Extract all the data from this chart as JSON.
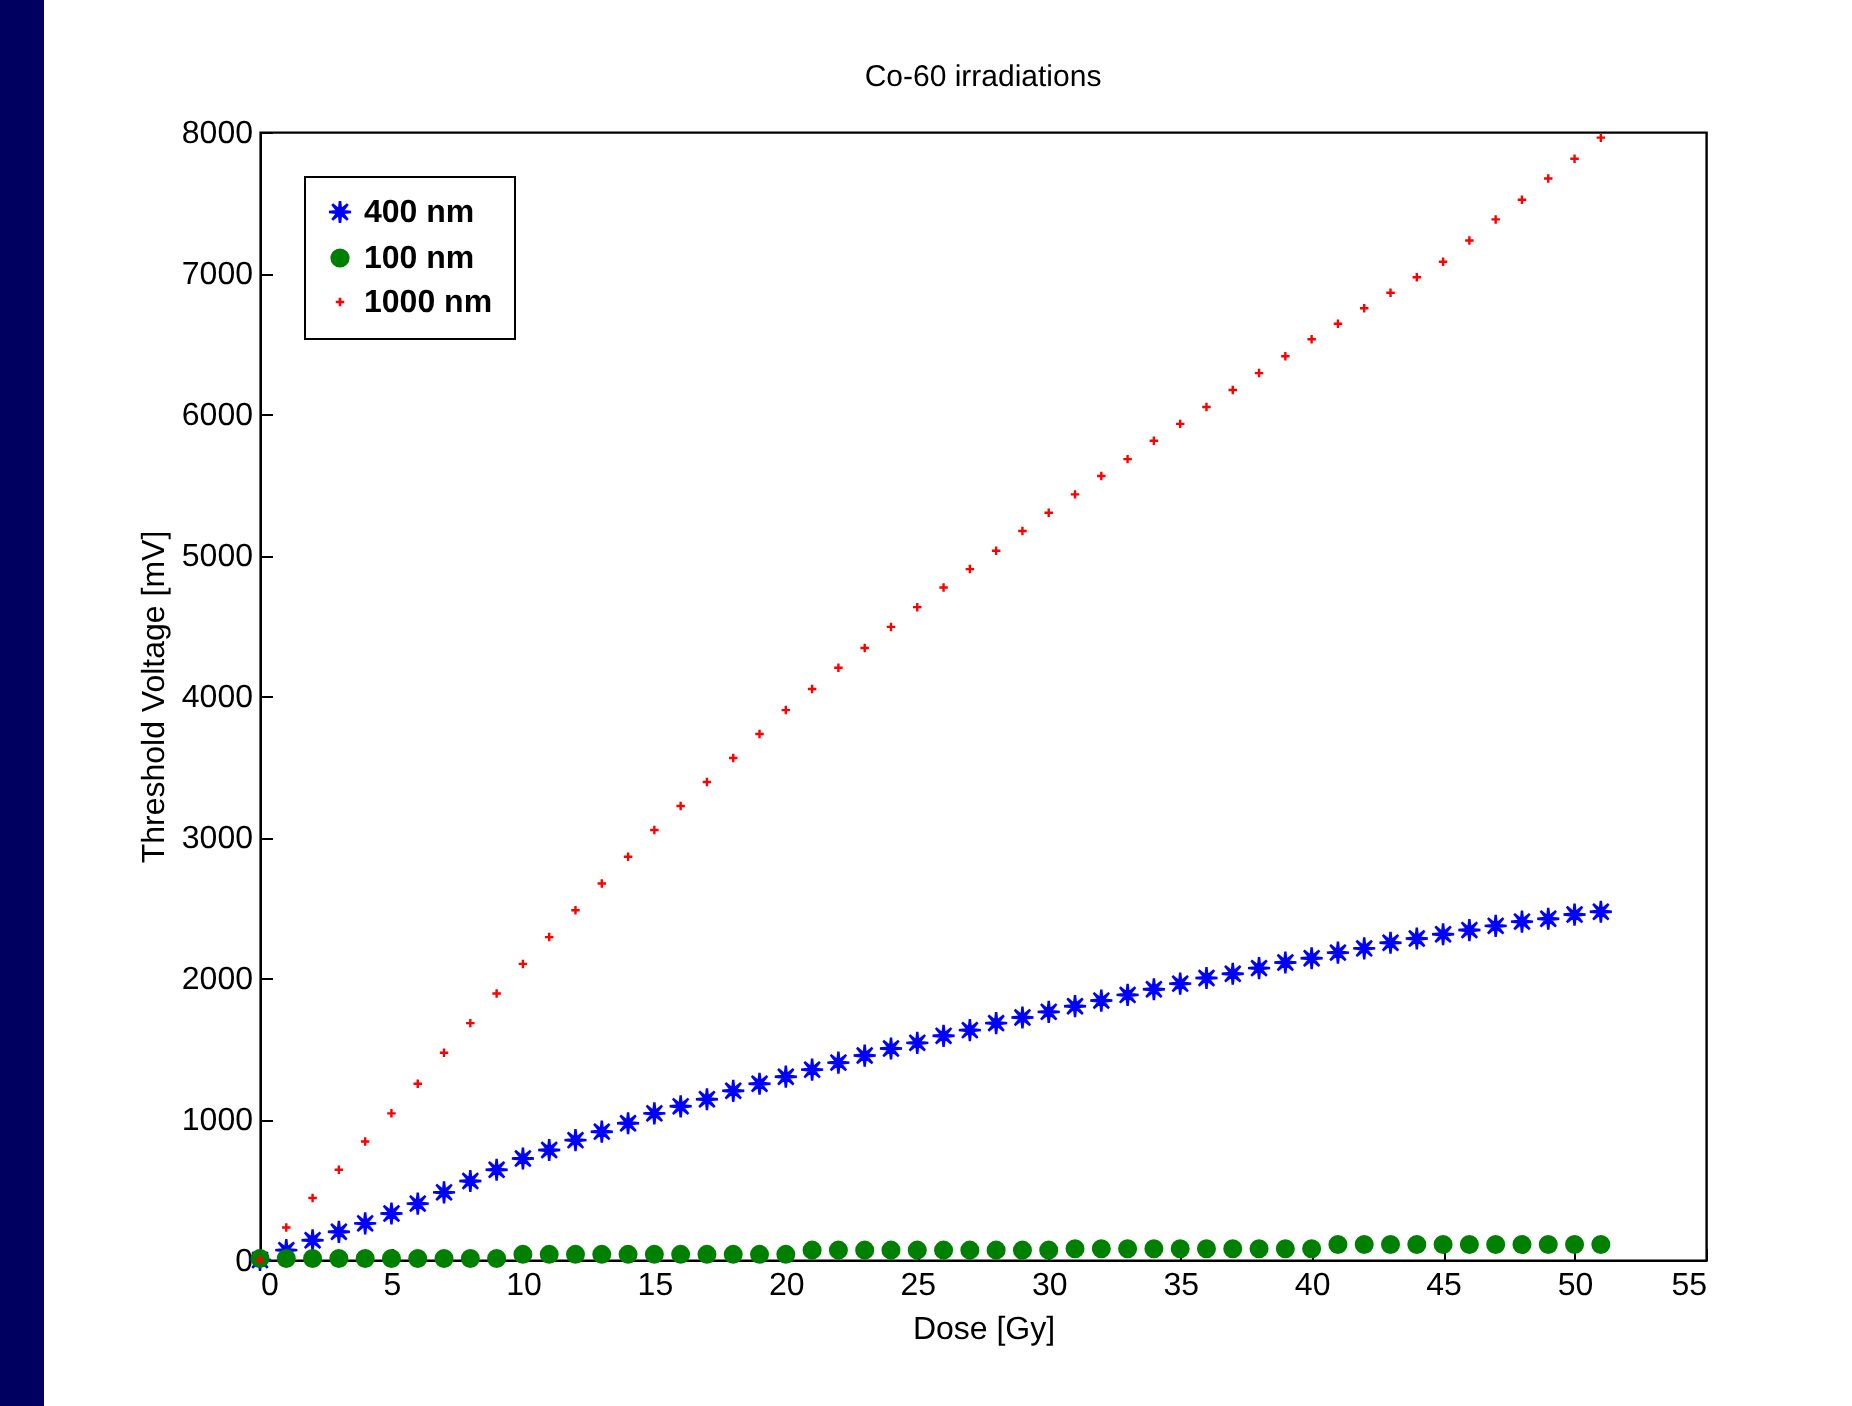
{
  "chart_data": {
    "type": "scatter",
    "title": "Co-60 irradiations",
    "xlabel": "Dose [Gy]",
    "ylabel": "Threshold Voltage [mV]",
    "x": [
      0,
      1,
      2,
      3,
      4,
      5,
      6,
      7,
      8,
      9,
      10,
      11,
      12,
      13,
      14,
      15,
      16,
      17,
      18,
      19,
      20,
      21,
      22,
      23,
      24,
      25,
      26,
      27,
      28,
      29,
      30,
      31,
      32,
      33,
      34,
      35,
      36,
      37,
      38,
      39,
      40,
      41,
      42,
      43,
      44,
      45,
      46,
      47,
      48,
      49,
      50,
      51
    ],
    "series": [
      {
        "name": "400 nm",
        "color": "#0000ff",
        "marker": "star",
        "values": [
          0,
          70,
          140,
          200,
          260,
          330,
          400,
          480,
          560,
          640,
          720,
          780,
          850,
          910,
          970,
          1040,
          1090,
          1140,
          1200,
          1250,
          1300,
          1350,
          1400,
          1450,
          1500,
          1540,
          1590,
          1630,
          1680,
          1720,
          1760,
          1800,
          1840,
          1880,
          1920,
          1960,
          2000,
          2030,
          2070,
          2110,
          2140,
          2180,
          2210,
          2250,
          2280,
          2310,
          2340,
          2370,
          2400,
          2420,
          2450,
          2470
        ]
      },
      {
        "name": "100  nm",
        "color": "#008000",
        "marker": "circle",
        "values": [
          10,
          10,
          10,
          10,
          10,
          10,
          10,
          10,
          10,
          10,
          40,
          40,
          40,
          40,
          40,
          40,
          40,
          40,
          40,
          40,
          40,
          70,
          70,
          70,
          70,
          70,
          70,
          70,
          70,
          70,
          70,
          80,
          80,
          80,
          80,
          80,
          80,
          80,
          80,
          80,
          80,
          110,
          110,
          110,
          110,
          110,
          110,
          110,
          110,
          110,
          110,
          110
        ]
      },
      {
        "name": "1000 nm",
        "color": "#ff0000",
        "marker": "cross",
        "values": [
          0,
          230,
          440,
          640,
          840,
          1040,
          1250,
          1470,
          1680,
          1890,
          2100,
          2290,
          2480,
          2670,
          2860,
          3050,
          3220,
          3390,
          3560,
          3730,
          3900,
          4050,
          4200,
          4340,
          4490,
          4630,
          4770,
          4900,
          5030,
          5170,
          5300,
          5430,
          5560,
          5680,
          5810,
          5930,
          6050,
          6170,
          6290,
          6410,
          6530,
          6640,
          6750,
          6860,
          6970,
          7080,
          7230,
          7380,
          7520,
          7670,
          7810,
          7960
        ]
      }
    ],
    "xlim": [
      0,
      55
    ],
    "xticks": [
      0,
      5,
      10,
      15,
      20,
      25,
      30,
      35,
      40,
      45,
      50,
      55
    ],
    "ylim": [
      0,
      8000
    ],
    "yticks": [
      0,
      1000,
      2000,
      3000,
      4000,
      5000,
      6000,
      7000,
      8000
    ],
    "legend": "top left"
  }
}
